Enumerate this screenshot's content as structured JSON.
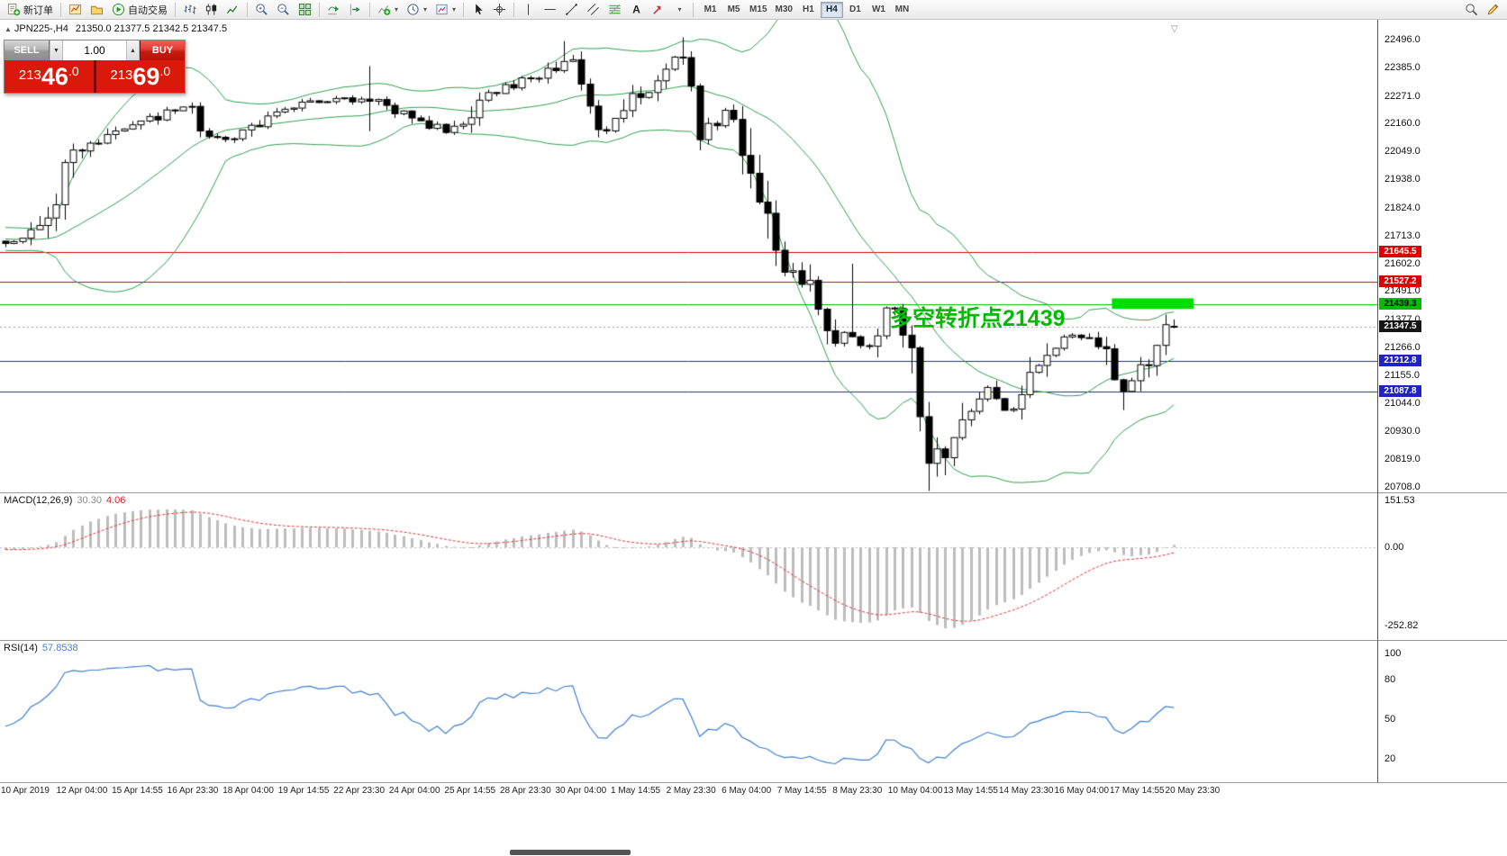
{
  "toolbar": {
    "new_order_label": "新订单",
    "autotrading_label": "自动交易",
    "timeframes": [
      "M1",
      "M5",
      "M15",
      "M30",
      "H1",
      "H4",
      "D1",
      "W1",
      "MN"
    ],
    "active_timeframe": "H4"
  },
  "glyphs": {
    "dropdown_caret": "▾",
    "step_up": "▲",
    "step_down": "▼",
    "shift_marker": "▽",
    "collapse_arrow": "▲"
  },
  "chart": {
    "title": "JPN225-,H4",
    "ohlc": "21350.0 21377.5 21342.5 21347.5",
    "annotation_text": "多空转折点21439",
    "annotation_color": "#00bb00",
    "price_axis_labels": [
      "22496.0",
      "22385.0",
      "22271.0",
      "22160.0",
      "22049.0",
      "21938.0",
      "21824.0",
      "21713.0",
      "21602.0",
      "21491.0",
      "21377.0",
      "21266.0",
      "21155.0",
      "21044.0",
      "20930.0",
      "20819.0",
      "20708.0"
    ],
    "levels": [
      {
        "label": "21645.5",
        "price": 21645.5,
        "color": "#dd0000",
        "text_color": "#ffffff"
      },
      {
        "label": "21527.2",
        "price": 21527.2,
        "color": "#dd0000",
        "text_color": "#ffffff"
      },
      {
        "label": "21439.3",
        "price": 21439.3,
        "color": "#00bb00",
        "text_color": "#000000"
      },
      {
        "label": "21212.8",
        "price": 21212.8,
        "color": "#2020cc",
        "text_color": "#ffffff"
      },
      {
        "label": "21087.8",
        "price": 21087.8,
        "color": "#2020cc",
        "text_color": "#ffffff"
      }
    ],
    "current_price": {
      "label": "21347.5",
      "price": 21347.5,
      "color": "#151515",
      "text_color": "#ffffff"
    }
  },
  "trade_panel": {
    "sell_label": "SELL",
    "buy_label": "BUY",
    "volume": "1.00",
    "sell_price": "21346.0",
    "buy_price": "21369.0",
    "sell_parts": {
      "pre": "213",
      "big": "46",
      "suf": ".0"
    },
    "buy_parts": {
      "pre": "213",
      "big": "69",
      "suf": ".0"
    }
  },
  "indicators": {
    "macd": {
      "name": "MACD(12,26,9)",
      "value_main": "30.30",
      "value_signal": "4.06",
      "axis_labels": [
        "151.53",
        "0.00",
        "-252.82"
      ],
      "histogram_color": "#bdbdbd",
      "signal_color": "#e03030"
    },
    "rsi": {
      "name": "RSI(14)",
      "value": "57.8538",
      "axis_labels": [
        "100",
        "80",
        "50",
        "20"
      ],
      "line_color": "#3f7fd2"
    }
  },
  "time_axis": {
    "labels": [
      "10 Apr 2019",
      "12 Apr 04:00",
      "15 Apr 14:55",
      "16 Apr 23:30",
      "18 Apr 04:00",
      "19 Apr 14:55",
      "22 Apr 23:30",
      "24 Apr 04:00",
      "25 Apr 14:55",
      "28 Apr 23:30",
      "30 Apr 04:00",
      "1 May 14:55",
      "2 May 23:30",
      "6 May 04:00",
      "7 May 14:55",
      "8 May 23:30",
      "10 May 04:00",
      "13 May 14:55",
      "14 May 23:30",
      "16 May 04:00",
      "17 May 14:55",
      "20 May 23:30"
    ]
  },
  "chart_data": {
    "type": "candlestick",
    "symbol": "JPN225-",
    "timeframe": "H4",
    "visible_price_range": [
      20708,
      22496
    ],
    "last_ohlc": {
      "open": 21350.0,
      "high": 21377.5,
      "low": 21342.5,
      "close": 21347.5
    },
    "up_color": "#ffffff",
    "down_color": "#000000",
    "bollinger": {
      "period": 20,
      "deviation": 2,
      "color": "#2f9e4f"
    },
    "seed": 13,
    "pre_base": 21690,
    "pre_slope": 1.2,
    "pre_wave": 28,
    "waypoints": [
      [
        0,
        21690
      ],
      [
        4,
        21715
      ],
      [
        6,
        21850
      ],
      [
        8,
        22020
      ],
      [
        12,
        22100
      ],
      [
        17,
        22170
      ],
      [
        22,
        22230
      ],
      [
        24,
        22120
      ],
      [
        27,
        22080
      ],
      [
        32,
        22220
      ],
      [
        38,
        22250
      ],
      [
        44,
        22260
      ],
      [
        47,
        22200
      ],
      [
        53,
        22120
      ],
      [
        57,
        22280
      ],
      [
        64,
        22360
      ],
      [
        67,
        22420
      ],
      [
        70,
        22200
      ],
      [
        71,
        22120
      ],
      [
        74,
        22250
      ],
      [
        78,
        22350
      ],
      [
        80,
        22460
      ],
      [
        82,
        22180
      ],
      [
        84,
        22130
      ],
      [
        86,
        22240
      ],
      [
        87,
        22150
      ],
      [
        89,
        21900
      ],
      [
        91,
        21650
      ],
      [
        94,
        21550
      ],
      [
        96,
        21500
      ],
      [
        97,
        21350
      ],
      [
        99,
        21280
      ],
      [
        100,
        21350
      ],
      [
        102,
        21250
      ],
      [
        104,
        21380
      ],
      [
        105,
        21450
      ],
      [
        106,
        21350
      ],
      [
        108,
        21100
      ],
      [
        109,
        20900
      ],
      [
        111,
        20800
      ],
      [
        112,
        20850
      ],
      [
        114,
        21000
      ],
      [
        115,
        21080
      ],
      [
        117,
        21100
      ],
      [
        119,
        21000
      ],
      [
        120,
        21050
      ],
      [
        122,
        21200
      ],
      [
        124,
        21280
      ],
      [
        126,
        21300
      ],
      [
        128,
        21320
      ],
      [
        129,
        21250
      ],
      [
        131,
        21220
      ],
      [
        132,
        21080
      ],
      [
        134,
        21150
      ],
      [
        135,
        21200
      ],
      [
        137,
        21300
      ],
      [
        138,
        21350
      ]
    ],
    "spikes": [
      {
        "index": 43,
        "high": 22390,
        "low": 22130
      },
      {
        "index": 66,
        "high": 22490
      },
      {
        "index": 80,
        "high": 22505
      },
      {
        "index": 100,
        "high": 21600
      },
      {
        "index": 111,
        "low": 20755
      },
      {
        "index": 132,
        "low": 21015
      }
    ],
    "highlight_box": {
      "from_index": 131,
      "to_index": 140,
      "price_top": 21462,
      "price_bottom": 21420,
      "color": "#00dd00"
    }
  }
}
